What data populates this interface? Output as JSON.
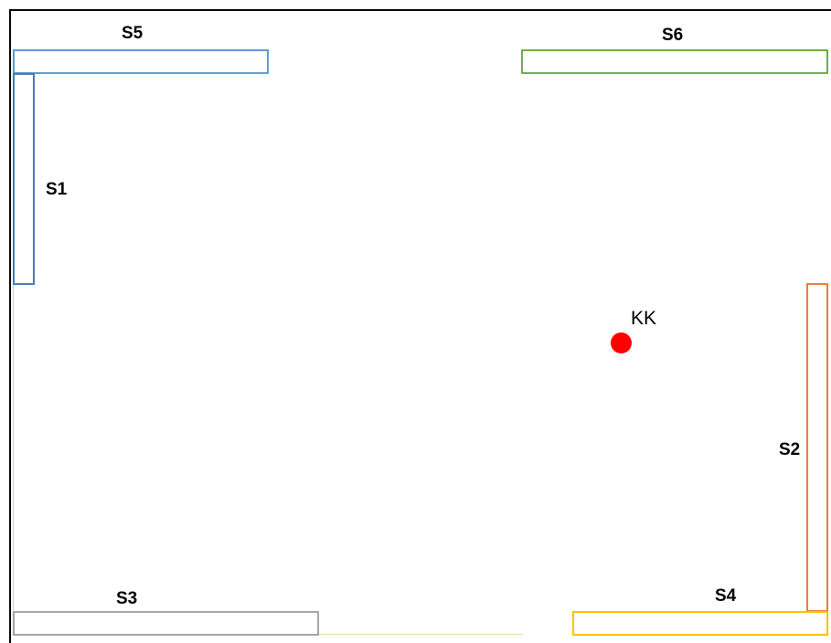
{
  "zones": {
    "s1": {
      "label": "S1",
      "color": "#4a7ab8"
    },
    "s2": {
      "label": "S2",
      "color": "#ed7d31"
    },
    "s3": {
      "label": "S3",
      "color": "#a5a5a5"
    },
    "s4": {
      "label": "S4",
      "color": "#ffc000"
    },
    "s5": {
      "label": "S5",
      "color": "#5b9bd5"
    },
    "s6": {
      "label": "S6",
      "color": "#70ad47"
    }
  },
  "marker": {
    "label": "KK",
    "color": "#ff0000"
  }
}
